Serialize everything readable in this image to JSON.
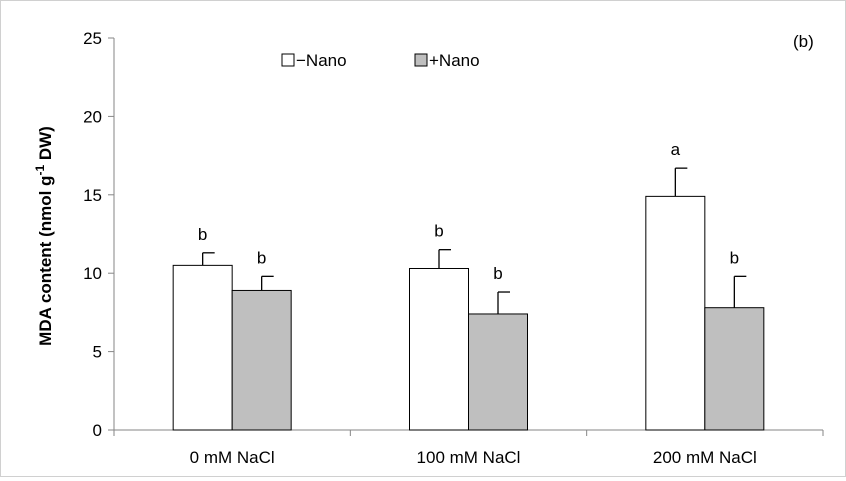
{
  "chart_data": {
    "type": "bar",
    "panel_label": "(b)",
    "ylabel": {
      "main": "MDA content (nmol g",
      "superscript": "-1",
      "tail": " DW)"
    },
    "xlabel": "",
    "ylim": [
      0,
      25
    ],
    "yticks": [
      "0",
      "5",
      "10",
      "15",
      "20",
      "25"
    ],
    "categories": [
      "0 mM NaCl",
      "100 mM NaCl",
      "200 mM NaCl"
    ],
    "series": [
      {
        "name": "−Nano",
        "color": "#ffffff",
        "values": [
          10.5,
          10.3,
          14.9
        ],
        "errors": [
          0.8,
          1.2,
          1.8
        ],
        "significance": [
          "b",
          "b",
          "a"
        ]
      },
      {
        "name": "+Nano",
        "color": "#bfbfbf",
        "values": [
          8.9,
          7.4,
          7.8
        ],
        "errors": [
          0.9,
          1.4,
          2.0
        ],
        "significance": [
          "b",
          "b",
          "b"
        ]
      }
    ],
    "legend_position": "top-center",
    "grid": false
  }
}
